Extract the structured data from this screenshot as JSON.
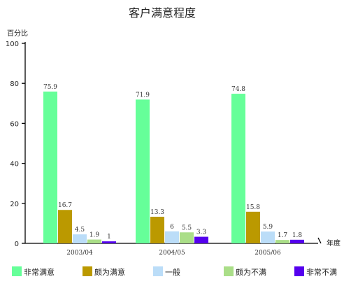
{
  "chart_data": {
    "type": "bar",
    "title": "客户满意程度",
    "ylabel": "百分比",
    "xlabel": "年度",
    "ylim": [
      0,
      100
    ],
    "yticks": [
      0,
      20,
      40,
      60,
      80,
      100
    ],
    "categories": [
      "2003/04",
      "2004/05",
      "2005/06"
    ],
    "series": [
      {
        "name": "非常满意",
        "values": [
          75.9,
          71.9,
          74.8
        ],
        "labels": [
          "75.9",
          "71.9",
          "74.8"
        ],
        "color": "#66ff99"
      },
      {
        "name": "颇为满意",
        "values": [
          16.7,
          13.3,
          15.8
        ],
        "labels": [
          "16.7",
          "13.3",
          "15.8"
        ],
        "color": "#bb9900"
      },
      {
        "name": "一般",
        "values": [
          4.5,
          6,
          5.9
        ],
        "labels": [
          "4.5",
          "6",
          "5.9"
        ],
        "color": "#bbddf8"
      },
      {
        "name": "颇为不满",
        "values": [
          1.9,
          5.5,
          1.7
        ],
        "labels": [
          "1.9",
          "5.5",
          "1.7"
        ],
        "color": "#aade88"
      },
      {
        "name": "非常不满",
        "values": [
          1,
          3.3,
          1.8
        ],
        "labels": [
          "1",
          "3.3",
          "1.8"
        ],
        "color": "#5500ee"
      }
    ],
    "legend_position": "bottom",
    "grid": false
  }
}
